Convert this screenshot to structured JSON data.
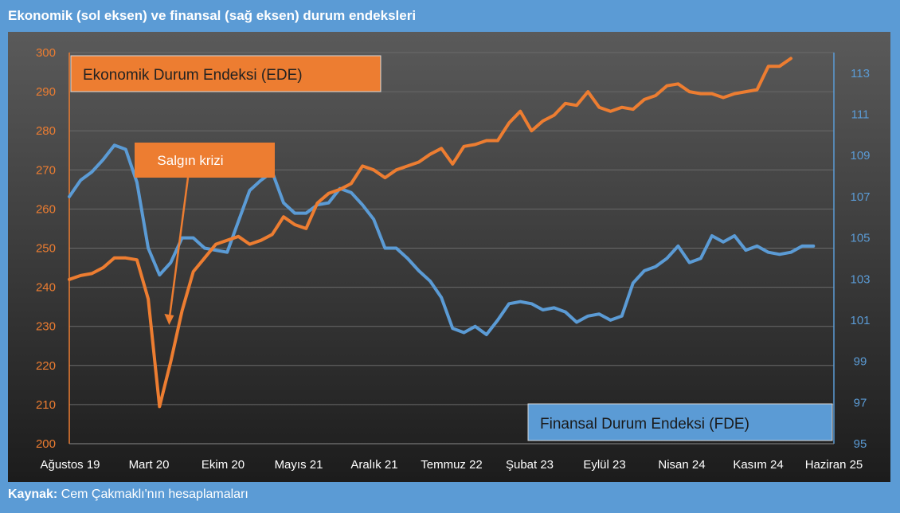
{
  "header": {
    "title": "Ekonomik (sol eksen) ve finansal (sağ eksen) durum endeksleri"
  },
  "footer": {
    "source_label": "Kaynak:",
    "source_text": " Cem Çakmaklı'nın hesaplamaları"
  },
  "colors": {
    "frame": "#5b9bd5",
    "plot_bg_top": "#595959",
    "plot_bg_bottom": "#1e1e1e",
    "ede": "#ed7d31",
    "fde": "#5b9bd5"
  },
  "chart_data": {
    "type": "line",
    "title": "Ekonomik (sol eksen) ve finansal (sağ eksen) durum endeksleri",
    "x_tick_labels": [
      "Ağustos 19",
      "Mart 20",
      "Ekim 20",
      "Mayıs 21",
      "Aralık 21",
      "Temmuz 22",
      "Şubat 23",
      "Eylül 23",
      "Nisan 24",
      "Kasım 24",
      "Haziran 25"
    ],
    "y_left": {
      "ylim": [
        200,
        300
      ],
      "ticks": [
        200,
        210,
        220,
        230,
        240,
        250,
        260,
        270,
        280,
        290,
        300
      ]
    },
    "y_right": {
      "ylim": [
        95,
        114
      ],
      "ticks": [
        95,
        97,
        99,
        101,
        103,
        105,
        107,
        109,
        111,
        113
      ]
    },
    "grid": true,
    "series": [
      {
        "name": "Ekonomik Durum Endeksi (EDE)",
        "axis": "left",
        "values": [
          242,
          243,
          243.5,
          245,
          247.5,
          247.5,
          247,
          237,
          209.5,
          221,
          234,
          244,
          247.5,
          251,
          252,
          253,
          251,
          252,
          253.5,
          258,
          256,
          255,
          261.5,
          264,
          265,
          266.5,
          271,
          270,
          268,
          270,
          271,
          272,
          274,
          275.5,
          271.5,
          276,
          276.5,
          277.5,
          277.5,
          282,
          285,
          280,
          282.5,
          284,
          287,
          286.5,
          290,
          286,
          285,
          286,
          285.5,
          288,
          289,
          291.5,
          292,
          290,
          289.5,
          289.5,
          288.5,
          289.5,
          290,
          290.5,
          296.5,
          296.5,
          298.5
        ]
      },
      {
        "name": "Finansal Durum Endeksi (FDE)",
        "axis": "right",
        "values": [
          107,
          107.8,
          108.2,
          108.8,
          109.5,
          109.3,
          107.7,
          104.5,
          103.2,
          103.8,
          105,
          105,
          104.5,
          104.4,
          104.3,
          105.8,
          107.3,
          107.8,
          108.2,
          106.7,
          106.2,
          106.2,
          106.6,
          106.7,
          107.4,
          107.2,
          106.6,
          105.9,
          104.5,
          104.5,
          104,
          103.4,
          102.9,
          102.1,
          100.6,
          100.4,
          100.7,
          100.3,
          101,
          101.8,
          101.9,
          101.8,
          101.5,
          101.6,
          101.4,
          100.9,
          101.2,
          101.3,
          101,
          101.2,
          102.8,
          103.4,
          103.6,
          104,
          104.6,
          103.8,
          104,
          105.1,
          104.8,
          105.1,
          104.4,
          104.6,
          104.3,
          104.2,
          104.3,
          104.6,
          104.6
        ]
      }
    ],
    "annotations": [
      {
        "text": "Salgın krizi",
        "arrow_to_index": 9
      }
    ]
  }
}
